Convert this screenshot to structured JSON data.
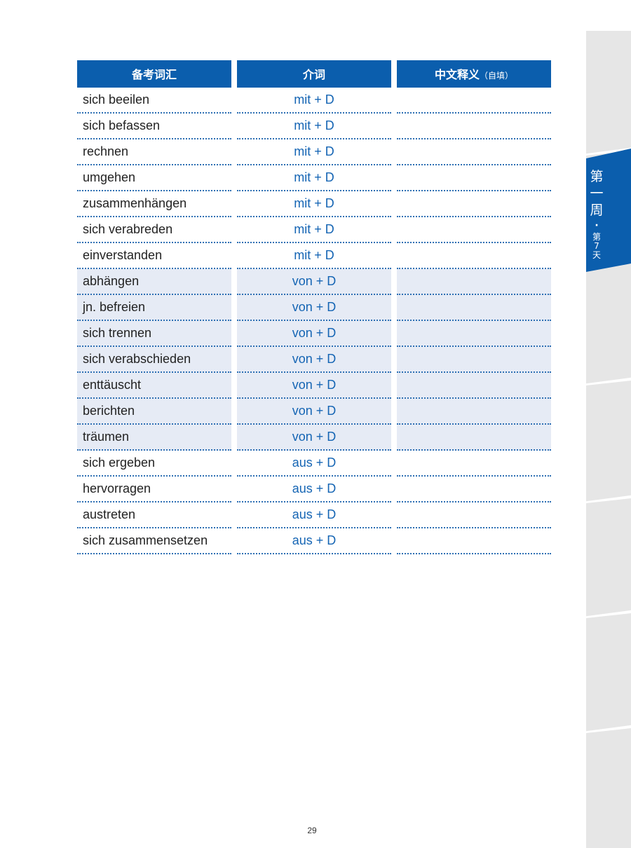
{
  "table": {
    "headers": [
      "备考词汇",
      "介词",
      "中文释义",
      "（自填）"
    ],
    "rows": [
      {
        "word": "sich beeilen",
        "prep": "mit + D",
        "meaning": ""
      },
      {
        "word": "sich befassen",
        "prep": "mit + D",
        "meaning": ""
      },
      {
        "word": "rechnen",
        "prep": "mit + D",
        "meaning": ""
      },
      {
        "word": "umgehen",
        "prep": "mit + D",
        "meaning": ""
      },
      {
        "word": "zusammenhängen",
        "prep": "mit + D",
        "meaning": ""
      },
      {
        "word": "sich verabreden",
        "prep": "mit + D",
        "meaning": ""
      },
      {
        "word": "einverstanden",
        "prep": "mit + D",
        "meaning": ""
      },
      {
        "word": "abhängen",
        "prep": "von + D",
        "meaning": ""
      },
      {
        "word": "jn. befreien",
        "prep": "von + D",
        "meaning": ""
      },
      {
        "word": "sich trennen",
        "prep": "von + D",
        "meaning": ""
      },
      {
        "word": "sich verabschieden",
        "prep": "von + D",
        "meaning": ""
      },
      {
        "word": "enttäuscht",
        "prep": "von + D",
        "meaning": ""
      },
      {
        "word": "berichten",
        "prep": "von + D",
        "meaning": ""
      },
      {
        "word": "träumen",
        "prep": "von + D",
        "meaning": ""
      },
      {
        "word": "sich ergeben",
        "prep": "aus + D",
        "meaning": ""
      },
      {
        "word": "hervorragen",
        "prep": "aus + D",
        "meaning": ""
      },
      {
        "word": "austreten",
        "prep": "aus + D",
        "meaning": ""
      },
      {
        "word": "sich zusammensetzen",
        "prep": "aus + D",
        "meaning": ""
      }
    ]
  },
  "side_tab": {
    "week": [
      "第",
      "一",
      "周"
    ],
    "dot": "·",
    "day": [
      "第",
      "7",
      "天"
    ]
  },
  "page_number": "29",
  "colors": {
    "accent": "#0b5ead",
    "shaded_row": "#e6ebf5",
    "prep_text": "#1565b4"
  }
}
